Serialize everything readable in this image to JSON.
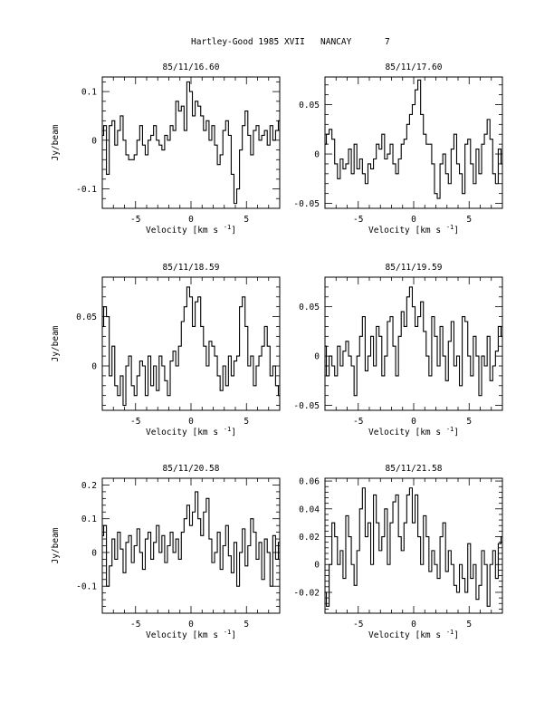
{
  "header": {
    "title": "Hartley-Good 1985 XVII",
    "site": "NANCAY",
    "page_number": "7"
  },
  "chart_data": [
    {
      "type": "line",
      "title": "85/11/16.60",
      "xlabel": "Velocity [km s",
      "xlabel_sup": "-1",
      "xlabel_close": "]",
      "ylabel": "Jy/beam",
      "xlim": [
        -8,
        8
      ],
      "ylim": [
        -0.14,
        0.13
      ],
      "xticks": [
        -5,
        0,
        5
      ],
      "yticks": [
        -0.1,
        0,
        0.1
      ],
      "ytick_labels": [
        "-0.1",
        "0",
        "0.1"
      ],
      "x": [
        -8.0,
        -7.75,
        -7.5,
        -7.25,
        -7.0,
        -6.75,
        -6.5,
        -6.25,
        -6.0,
        -5.75,
        -5.5,
        -5.25,
        -5.0,
        -4.75,
        -4.5,
        -4.25,
        -4.0,
        -3.75,
        -3.5,
        -3.25,
        -3.0,
        -2.75,
        -2.5,
        -2.25,
        -2.0,
        -1.75,
        -1.5,
        -1.25,
        -1.0,
        -0.75,
        -0.5,
        -0.25,
        0.0,
        0.25,
        0.5,
        0.75,
        1.0,
        1.25,
        1.5,
        1.75,
        2.0,
        2.25,
        2.5,
        2.75,
        3.0,
        3.25,
        3.5,
        3.75,
        4.0,
        4.25,
        4.5,
        4.75,
        5.0,
        5.25,
        5.5,
        5.75,
        6.0,
        6.25,
        6.5,
        6.75,
        7.0,
        7.25,
        7.5,
        7.75,
        8.0
      ],
      "y": [
        0.01,
        0.03,
        -0.07,
        0.03,
        0.04,
        -0.01,
        0.02,
        0.05,
        0.0,
        -0.03,
        -0.04,
        -0.04,
        -0.03,
        0.0,
        0.03,
        -0.01,
        -0.03,
        0.0,
        0.01,
        0.03,
        0.0,
        -0.01,
        -0.02,
        0.01,
        0.0,
        0.03,
        0.02,
        0.08,
        0.06,
        0.07,
        0.02,
        0.12,
        0.1,
        0.05,
        0.08,
        0.07,
        0.05,
        0.02,
        0.04,
        0.0,
        0.03,
        -0.01,
        -0.05,
        -0.03,
        0.02,
        0.04,
        0.01,
        -0.07,
        -0.13,
        -0.1,
        -0.02,
        0.03,
        0.06,
        0.01,
        -0.03,
        0.02,
        0.03,
        0.0,
        0.01,
        0.02,
        -0.01,
        0.03,
        0.0,
        0.02,
        0.04
      ]
    },
    {
      "type": "line",
      "title": "85/11/17.60",
      "xlabel": "Velocity [km s",
      "xlabel_sup": "-1",
      "xlabel_close": "]",
      "ylabel": "",
      "xlim": [
        -8,
        8
      ],
      "ylim": [
        -0.055,
        0.078
      ],
      "xticks": [
        -5,
        0,
        5
      ],
      "yticks": [
        -0.05,
        0,
        0.05
      ],
      "ytick_labels": [
        "-0.05",
        "0",
        "0.05"
      ],
      "x": [
        -8.0,
        -7.75,
        -7.5,
        -7.25,
        -7.0,
        -6.75,
        -6.5,
        -6.25,
        -6.0,
        -5.75,
        -5.5,
        -5.25,
        -5.0,
        -4.75,
        -4.5,
        -4.25,
        -4.0,
        -3.75,
        -3.5,
        -3.25,
        -3.0,
        -2.75,
        -2.5,
        -2.25,
        -2.0,
        -1.75,
        -1.5,
        -1.25,
        -1.0,
        -0.75,
        -0.5,
        -0.25,
        0.0,
        0.25,
        0.5,
        0.75,
        1.0,
        1.25,
        1.5,
        1.75,
        2.0,
        2.25,
        2.5,
        2.75,
        3.0,
        3.25,
        3.5,
        3.75,
        4.0,
        4.25,
        4.5,
        4.75,
        5.0,
        5.25,
        5.5,
        5.75,
        6.0,
        6.25,
        6.5,
        6.75,
        7.0,
        7.25,
        7.5,
        7.75,
        8.0
      ],
      "y": [
        0.01,
        0.02,
        0.025,
        0.015,
        -0.01,
        -0.025,
        -0.005,
        -0.015,
        -0.01,
        0.005,
        -0.02,
        0.01,
        -0.015,
        -0.005,
        -0.02,
        -0.03,
        -0.01,
        -0.015,
        -0.005,
        0.01,
        0.005,
        0.02,
        -0.005,
        0.0,
        0.01,
        -0.01,
        -0.02,
        -0.005,
        0.01,
        0.015,
        0.03,
        0.04,
        0.05,
        0.065,
        0.075,
        0.04,
        0.02,
        0.01,
        0.01,
        -0.01,
        -0.04,
        -0.045,
        -0.01,
        0.0,
        -0.02,
        -0.03,
        0.005,
        0.02,
        -0.01,
        -0.02,
        -0.04,
        0.01,
        0.015,
        -0.01,
        -0.03,
        0.005,
        -0.02,
        0.01,
        0.02,
        0.035,
        0.015,
        -0.02,
        -0.03,
        0.005,
        -0.01
      ]
    },
    {
      "type": "line",
      "title": "85/11/18.59",
      "xlabel": "Velocity [km s",
      "xlabel_sup": "-1",
      "xlabel_close": "]",
      "ylabel": "Jy/beam",
      "xlim": [
        -8,
        8
      ],
      "ylim": [
        -0.045,
        0.09
      ],
      "xticks": [
        -5,
        0,
        5
      ],
      "yticks": [
        0,
        0.05
      ],
      "ytick_labels": [
        "0",
        "0.05"
      ],
      "x": [
        -8.0,
        -7.75,
        -7.5,
        -7.25,
        -7.0,
        -6.75,
        -6.5,
        -6.25,
        -6.0,
        -5.75,
        -5.5,
        -5.25,
        -5.0,
        -4.75,
        -4.5,
        -4.25,
        -4.0,
        -3.75,
        -3.5,
        -3.25,
        -3.0,
        -2.75,
        -2.5,
        -2.25,
        -2.0,
        -1.75,
        -1.5,
        -1.25,
        -1.0,
        -0.75,
        -0.5,
        -0.25,
        0.0,
        0.25,
        0.5,
        0.75,
        1.0,
        1.25,
        1.5,
        1.75,
        2.0,
        2.25,
        2.5,
        2.75,
        3.0,
        3.25,
        3.5,
        3.75,
        4.0,
        4.25,
        4.5,
        4.75,
        5.0,
        5.25,
        5.5,
        5.75,
        6.0,
        6.25,
        6.5,
        6.75,
        7.0,
        7.25,
        7.5,
        7.75,
        8.0
      ],
      "y": [
        0.04,
        0.06,
        0.05,
        -0.01,
        0.02,
        -0.02,
        -0.03,
        -0.01,
        -0.04,
        0.0,
        0.01,
        -0.02,
        -0.03,
        -0.01,
        0.005,
        0.0,
        -0.03,
        0.01,
        -0.02,
        0.0,
        -0.025,
        0.01,
        0.0,
        -0.015,
        -0.03,
        0.005,
        0.015,
        0.0,
        0.02,
        0.045,
        0.06,
        0.08,
        0.07,
        0.04,
        0.065,
        0.07,
        0.04,
        0.02,
        0.0,
        0.025,
        0.02,
        0.01,
        -0.01,
        -0.025,
        0.0,
        -0.02,
        0.01,
        -0.01,
        0.005,
        0.01,
        0.06,
        0.07,
        0.04,
        0.0,
        0.01,
        -0.02,
        0.0,
        0.01,
        0.02,
        0.04,
        0.02,
        -0.01,
        0.0,
        -0.02,
        -0.03
      ]
    },
    {
      "type": "line",
      "title": "85/11/19.59",
      "xlabel": "Velocity [km s",
      "xlabel_sup": "-1",
      "xlabel_close": "]",
      "ylabel": "",
      "xlim": [
        -8,
        8
      ],
      "ylim": [
        -0.055,
        0.08
      ],
      "xticks": [
        -5,
        0,
        5
      ],
      "yticks": [
        -0.05,
        0,
        0.05
      ],
      "ytick_labels": [
        "-0.05",
        "0",
        "0.05"
      ],
      "x": [
        -8.0,
        -7.75,
        -7.5,
        -7.25,
        -7.0,
        -6.75,
        -6.5,
        -6.25,
        -6.0,
        -5.75,
        -5.5,
        -5.25,
        -5.0,
        -4.75,
        -4.5,
        -4.25,
        -4.0,
        -3.75,
        -3.5,
        -3.25,
        -3.0,
        -2.75,
        -2.5,
        -2.25,
        -2.0,
        -1.75,
        -1.5,
        -1.25,
        -1.0,
        -0.75,
        -0.5,
        -0.25,
        0.0,
        0.25,
        0.5,
        0.75,
        1.0,
        1.25,
        1.5,
        1.75,
        2.0,
        2.25,
        2.5,
        2.75,
        3.0,
        3.25,
        3.5,
        3.75,
        4.0,
        4.25,
        4.5,
        4.75,
        5.0,
        5.25,
        5.5,
        5.75,
        6.0,
        6.25,
        6.5,
        6.75,
        7.0,
        7.25,
        7.5,
        7.75,
        8.0
      ],
      "y": [
        0.01,
        -0.02,
        0.0,
        -0.01,
        -0.02,
        0.01,
        -0.01,
        0.005,
        0.015,
        0.0,
        -0.01,
        -0.04,
        0.0,
        0.02,
        0.04,
        -0.015,
        0.0,
        0.02,
        -0.01,
        0.03,
        0.02,
        -0.02,
        0.0,
        0.035,
        0.04,
        0.01,
        -0.02,
        0.02,
        0.045,
        0.03,
        0.06,
        0.07,
        0.05,
        0.03,
        0.04,
        0.055,
        0.025,
        0.0,
        -0.02,
        0.04,
        0.02,
        -0.01,
        0.03,
        0.0,
        -0.025,
        0.015,
        0.035,
        -0.01,
        0.0,
        -0.03,
        0.04,
        0.035,
        0.0,
        -0.02,
        0.02,
        0.0,
        -0.04,
        0.0,
        -0.01,
        0.02,
        -0.025,
        -0.01,
        0.005,
        0.03,
        0.02
      ]
    },
    {
      "type": "line",
      "title": "85/11/20.58",
      "xlabel": "Velocity [km s",
      "xlabel_sup": "-1",
      "xlabel_close": "]",
      "ylabel": "Jy/beam",
      "xlim": [
        -8,
        8
      ],
      "ylim": [
        -0.18,
        0.22
      ],
      "xticks": [
        -5,
        0,
        5
      ],
      "yticks": [
        -0.1,
        0,
        0.1,
        0.2
      ],
      "ytick_labels": [
        "-0.1",
        "0",
        "0.1",
        "0.2"
      ],
      "x": [
        -8.0,
        -7.75,
        -7.5,
        -7.25,
        -7.0,
        -6.75,
        -6.5,
        -6.25,
        -6.0,
        -5.75,
        -5.5,
        -5.25,
        -5.0,
        -4.75,
        -4.5,
        -4.25,
        -4.0,
        -3.75,
        -3.5,
        -3.25,
        -3.0,
        -2.75,
        -2.5,
        -2.25,
        -2.0,
        -1.75,
        -1.5,
        -1.25,
        -1.0,
        -0.75,
        -0.5,
        -0.25,
        0.0,
        0.25,
        0.5,
        0.75,
        1.0,
        1.25,
        1.5,
        1.75,
        2.0,
        2.25,
        2.5,
        2.75,
        3.0,
        3.25,
        3.5,
        3.75,
        4.0,
        4.25,
        4.5,
        4.75,
        5.0,
        5.25,
        5.5,
        5.75,
        6.0,
        6.25,
        6.5,
        6.75,
        7.0,
        7.25,
        7.5,
        7.75,
        8.0
      ],
      "y": [
        0.05,
        0.08,
        -0.1,
        -0.04,
        0.04,
        -0.02,
        0.06,
        0.01,
        -0.06,
        0.03,
        0.05,
        -0.03,
        0.02,
        0.07,
        0.0,
        -0.05,
        0.04,
        0.06,
        -0.02,
        0.03,
        0.08,
        0.0,
        0.05,
        -0.03,
        0.02,
        0.06,
        0.0,
        0.04,
        -0.02,
        0.06,
        0.1,
        0.14,
        0.08,
        0.12,
        0.18,
        0.1,
        0.05,
        0.12,
        0.16,
        0.04,
        -0.03,
        0.0,
        0.06,
        -0.05,
        0.02,
        0.08,
        -0.01,
        -0.06,
        0.03,
        -0.1,
        0.0,
        0.07,
        -0.04,
        0.02,
        0.1,
        0.06,
        -0.02,
        0.03,
        -0.08,
        0.04,
        0.0,
        -0.1,
        0.05,
        -0.02,
        0.03
      ]
    },
    {
      "type": "line",
      "title": "85/11/21.58",
      "xlabel": "Velocity [km s",
      "xlabel_sup": "-1",
      "xlabel_close": "]",
      "ylabel": "",
      "xlim": [
        -8,
        8
      ],
      "ylim": [
        -0.035,
        0.062
      ],
      "xticks": [
        -5,
        0,
        5
      ],
      "yticks": [
        -0.02,
        0,
        0.02,
        0.04,
        0.06
      ],
      "ytick_labels": [
        "-0.02",
        "0",
        "0.02",
        "0.04",
        "0.06"
      ],
      "x": [
        -8.0,
        -7.75,
        -7.5,
        -7.25,
        -7.0,
        -6.75,
        -6.5,
        -6.25,
        -6.0,
        -5.75,
        -5.5,
        -5.25,
        -5.0,
        -4.75,
        -4.5,
        -4.25,
        -4.0,
        -3.75,
        -3.5,
        -3.25,
        -3.0,
        -2.75,
        -2.5,
        -2.25,
        -2.0,
        -1.75,
        -1.5,
        -1.25,
        -1.0,
        -0.75,
        -0.5,
        -0.25,
        0.0,
        0.25,
        0.5,
        0.75,
        1.0,
        1.25,
        1.5,
        1.75,
        2.0,
        2.25,
        2.5,
        2.75,
        3.0,
        3.25,
        3.5,
        3.75,
        4.0,
        4.25,
        4.5,
        4.75,
        5.0,
        5.25,
        5.5,
        5.75,
        6.0,
        6.25,
        6.5,
        6.75,
        7.0,
        7.25,
        7.5,
        7.75,
        8.0
      ],
      "y": [
        -0.02,
        -0.03,
        0.0,
        0.03,
        0.02,
        0.0,
        0.01,
        -0.01,
        0.035,
        0.02,
        0.0,
        -0.015,
        0.01,
        0.04,
        0.055,
        0.02,
        0.03,
        0.0,
        0.05,
        0.03,
        0.01,
        0.02,
        0.04,
        0.0,
        0.03,
        0.045,
        0.05,
        0.02,
        0.01,
        0.03,
        0.05,
        0.055,
        0.03,
        0.05,
        0.02,
        0.0,
        0.035,
        0.02,
        -0.005,
        0.01,
        0.0,
        -0.01,
        0.02,
        0.03,
        -0.005,
        0.01,
        0.0,
        -0.015,
        -0.02,
        0.0,
        -0.01,
        -0.02,
        0.015,
        -0.01,
        0.0,
        -0.025,
        -0.015,
        0.01,
        0.0,
        -0.03,
        0.0,
        0.01,
        -0.01,
        0.015,
        0.02
      ]
    }
  ]
}
